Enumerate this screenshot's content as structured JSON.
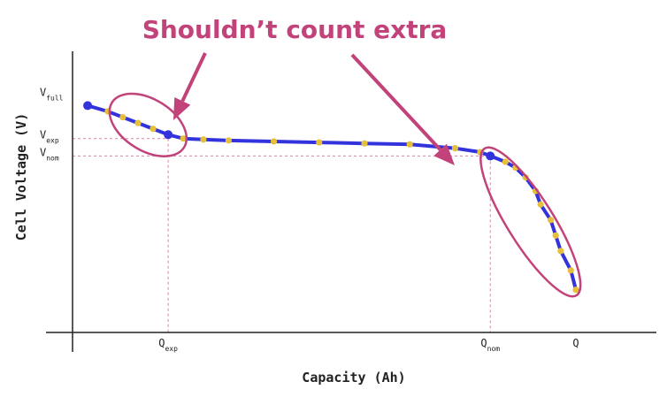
{
  "chart_data": {
    "type": "line",
    "title": "",
    "annotation": "Shouldn’t count extra",
    "xlabel": "Capacity (Ah)",
    "ylabel": "Cell Voltage (V)",
    "x_ticks": [
      {
        "main": "Q",
        "sub": "exp",
        "x": 0.19
      },
      {
        "main": "Q",
        "sub": "nom",
        "x": 0.83
      },
      {
        "main": "Q",
        "sub": "",
        "x": 1.0
      }
    ],
    "y_ticks": [
      {
        "main": "V",
        "sub": "full",
        "y": 1.0
      },
      {
        "main": "V",
        "sub": "exp",
        "y": 0.78
      },
      {
        "main": "V",
        "sub": "nom",
        "y": 0.69
      }
    ],
    "xlim": [
      0,
      1.16
    ],
    "ylim": [
      -0.22,
      1.23
    ],
    "series": [
      {
        "line_color": "#3333dd",
        "marker_color": "#e6c03a",
        "x": [
          0.03,
          0.07,
          0.1,
          0.13,
          0.16,
          0.19,
          0.22,
          0.26,
          0.31,
          0.4,
          0.49,
          0.58,
          0.67,
          0.76,
          0.81,
          0.83,
          0.86,
          0.88,
          0.9,
          0.92,
          0.93,
          0.95,
          0.96,
          0.97,
          0.99,
          1.0
        ],
        "y": [
          0.95,
          0.92,
          0.89,
          0.86,
          0.83,
          0.8,
          0.78,
          0.775,
          0.77,
          0.765,
          0.76,
          0.755,
          0.75,
          0.73,
          0.71,
          0.69,
          0.66,
          0.63,
          0.58,
          0.51,
          0.44,
          0.36,
          0.28,
          0.2,
          0.1,
          0.0
        ]
      }
    ],
    "markers_large": [
      0.03,
      0.19,
      0.83
    ],
    "callouts": [
      {
        "name": "left",
        "cx": 0.15,
        "cy": 0.85
      },
      {
        "name": "right",
        "cx": 0.91,
        "cy": 0.35
      }
    ],
    "colors": {
      "annotation": "#c2427a",
      "guide": "#c98aa8",
      "axis": "#222222"
    }
  }
}
